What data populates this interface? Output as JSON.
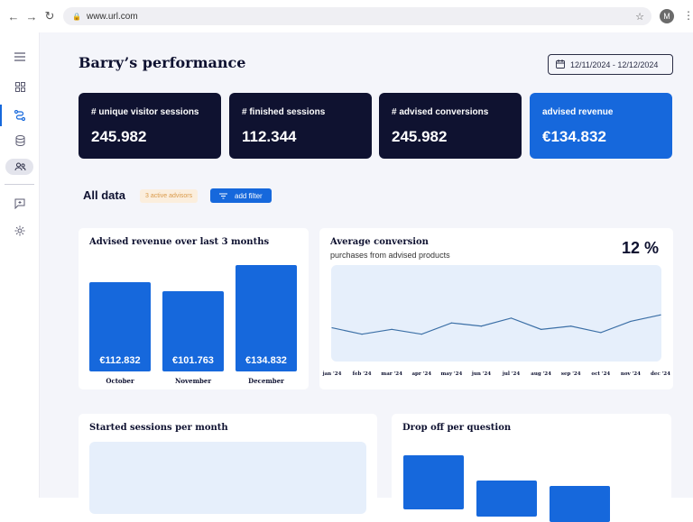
{
  "browser": {
    "url": "www.url.com",
    "avatar_initial": "M"
  },
  "page": {
    "title": "Barry’s performance",
    "date_range": "12/11/2024 - 12/12/2024"
  },
  "kpis": [
    {
      "label": "# unique visitor sessions",
      "value": "245.982"
    },
    {
      "label": "# finished sessions",
      "value": "112.344"
    },
    {
      "label": "# advised conversions",
      "value": "245.982"
    },
    {
      "label": "advised revenue",
      "value": "€134.832"
    }
  ],
  "all_data": {
    "heading": "All data",
    "badge": "3 active advisors",
    "filter_label": "add filter"
  },
  "cards": {
    "revenue": {
      "title": "Advised revenue over last 3 months"
    },
    "conversion": {
      "title": "Average conversion",
      "subtitle": "purchases from advised products",
      "value": "12 %"
    },
    "sessions": {
      "title": "Started sessions per month"
    },
    "dropoff": {
      "title": "Drop off per question"
    }
  },
  "colors": {
    "accent": "#1668dc",
    "dark": "#0f1230",
    "chart_bg": "#e6effb"
  },
  "chart_data": [
    {
      "type": "bar",
      "title": "Advised revenue over last 3 months",
      "categories": [
        "October",
        "November",
        "December"
      ],
      "values": [
        112832,
        101763,
        134832
      ],
      "labels": [
        "€112.832",
        "€101.763",
        "€134.832"
      ],
      "ylim": [
        0,
        140000
      ]
    },
    {
      "type": "line",
      "title": "Average conversion",
      "categories": [
        "jan '24",
        "feb '24",
        "mar '24",
        "apr '24",
        "may '24",
        "jun '24",
        "jul '24",
        "aug '24",
        "sep '24",
        "oct '24",
        "nov '24",
        "dec '24"
      ],
      "values": [
        10.5,
        8.5,
        10,
        8.5,
        12,
        11,
        13.5,
        10,
        11,
        9,
        12.5,
        14.5
      ],
      "ylim": [
        0,
        30
      ]
    }
  ]
}
